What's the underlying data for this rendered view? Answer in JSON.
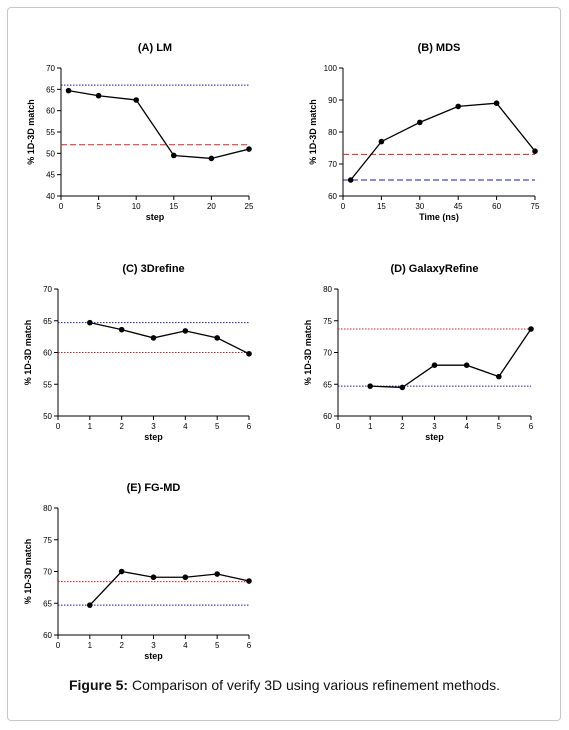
{
  "caption": {
    "label": "Figure 5:",
    "text": " Comparison of verify 3D using various refinement methods."
  },
  "chart_data": [
    {
      "type": "line",
      "title": "(A) LM",
      "xlabel": "step",
      "ylabel": "% 1D-3D match",
      "xlim": [
        0,
        25
      ],
      "ylim": [
        40,
        70
      ],
      "xticks": [
        0,
        5,
        10,
        15,
        20,
        25
      ],
      "yticks": [
        40,
        45,
        50,
        55,
        60,
        65,
        70
      ],
      "x": [
        1,
        5,
        10,
        15,
        20,
        25
      ],
      "y": [
        64.7,
        63.5,
        62.5,
        49.5,
        48.8,
        51.0
      ],
      "reference_lines": [
        {
          "y": 66.0,
          "color": "#1a1aa6",
          "style": "dotted"
        },
        {
          "y": 52.0,
          "color": "#e02020",
          "style": "dashed"
        }
      ]
    },
    {
      "type": "line",
      "title": "(B) MDS",
      "xlabel": "Time (ns)",
      "ylabel": "% 1D-3D match",
      "xlim": [
        0,
        75
      ],
      "ylim": [
        60,
        100
      ],
      "xticks": [
        0,
        15,
        30,
        45,
        60,
        75
      ],
      "yticks": [
        60,
        70,
        80,
        90,
        100
      ],
      "x": [
        3,
        15,
        30,
        45,
        60,
        75
      ],
      "y": [
        65.0,
        77.0,
        83.0,
        88.0,
        89.0,
        74.0
      ],
      "reference_lines": [
        {
          "y": 73.0,
          "color": "#e02020",
          "style": "dashed"
        },
        {
          "y": 65.0,
          "color": "#1a1aa6",
          "style": "dashed"
        }
      ]
    },
    {
      "type": "line",
      "title": "(C) 3Drefine",
      "xlabel": "step",
      "ylabel": "% 1D-3D match",
      "xlim": [
        0,
        6
      ],
      "ylim": [
        50,
        70
      ],
      "xticks": [
        0,
        1,
        2,
        3,
        4,
        5,
        6
      ],
      "yticks": [
        50,
        55,
        60,
        65,
        70
      ],
      "x": [
        1,
        2,
        3,
        4,
        5,
        6
      ],
      "y": [
        64.7,
        63.6,
        62.3,
        63.4,
        62.3,
        59.8
      ],
      "reference_lines": [
        {
          "y": 64.7,
          "color": "#1a1aa6",
          "style": "dotted"
        },
        {
          "y": 60.0,
          "color": "#e02020",
          "style": "dotted"
        }
      ]
    },
    {
      "type": "line",
      "title": "(D) GalaxyRefine",
      "xlabel": "step",
      "ylabel": "% 1D-3D match",
      "xlim": [
        0,
        6
      ],
      "ylim": [
        60,
        80
      ],
      "xticks": [
        0,
        1,
        2,
        3,
        4,
        5,
        6
      ],
      "yticks": [
        60,
        65,
        70,
        75,
        80
      ],
      "x": [
        1,
        2,
        3,
        4,
        5,
        6
      ],
      "y": [
        64.7,
        64.5,
        68.0,
        68.0,
        66.2,
        73.7
      ],
      "reference_lines": [
        {
          "y": 73.7,
          "color": "#e02020",
          "style": "dotted"
        },
        {
          "y": 64.7,
          "color": "#1a1aa6",
          "style": "dotted"
        }
      ]
    },
    {
      "type": "line",
      "title": "(E) FG-MD",
      "xlabel": "step",
      "ylabel": "% 1D-3D match",
      "xlim": [
        0,
        6
      ],
      "ylim": [
        60,
        80
      ],
      "xticks": [
        0,
        1,
        2,
        3,
        4,
        5,
        6
      ],
      "yticks": [
        60,
        65,
        70,
        75,
        80
      ],
      "x": [
        1,
        2,
        3,
        4,
        5,
        6
      ],
      "y": [
        64.7,
        70.0,
        69.1,
        69.1,
        69.6,
        68.5
      ],
      "reference_lines": [
        {
          "y": 68.4,
          "color": "#e02020",
          "style": "dotted"
        },
        {
          "y": 64.7,
          "color": "#1a1aa6",
          "style": "dotted"
        }
      ]
    }
  ]
}
